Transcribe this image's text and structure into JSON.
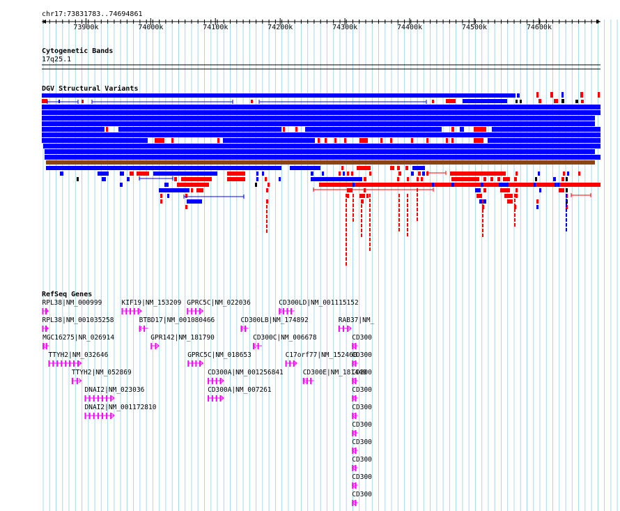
{
  "region": "chr17:73831783..74694861",
  "ruler": {
    "start": 73831783,
    "end": 74694861,
    "ticks": [
      "73900k",
      "74000k",
      "74100k",
      "74200k",
      "74300k",
      "74400k",
      "74500k",
      "74600k"
    ]
  },
  "tracks": {
    "cytoband": {
      "title": "Cytogenetic Bands",
      "band": "17q25.1"
    },
    "dgv": {
      "title": "DGV Structural Variants"
    },
    "refseq": {
      "title": "RefSeq Genes"
    }
  },
  "colors": {
    "grid": "#a8d8e8",
    "gain": "#0000ff",
    "loss": "#ff0000",
    "inversion": "#000000",
    "complex": "#8b4513",
    "gene": "#ff00ff"
  },
  "genes": [
    {
      "label": "RPL38|NM_000999",
      "strand": "+",
      "start": 73832300,
      "end": 73842000,
      "row": 0
    },
    {
      "label": "RPL38|NM_001035258",
      "strand": "+",
      "start": 73832300,
      "end": 73842000,
      "row": 1
    },
    {
      "label": "MGC16275|NR_026914",
      "strand": "-",
      "start": 73833000,
      "end": 73843000,
      "row": 2
    },
    {
      "label": "TTYH2|NM_032646",
      "strand": "+",
      "start": 73842000,
      "end": 73893000,
      "row": 3
    },
    {
      "label": "TTYH2|NM_052869",
      "strand": "+",
      "start": 73878000,
      "end": 73893000,
      "row": 4
    },
    {
      "label": "DNAI2|NM_023036",
      "strand": "+",
      "start": 73898000,
      "end": 73944000,
      "row": 5
    },
    {
      "label": "DNAI2|NM_001172810",
      "strand": "+",
      "start": 73898000,
      "end": 73944000,
      "row": 6
    },
    {
      "label": "KIF19|NM_153209",
      "strand": "+",
      "start": 73955000,
      "end": 73986000,
      "row": 0
    },
    {
      "label": "BTBD17|NM_001080466",
      "strand": "-",
      "start": 73982000,
      "end": 73996000,
      "row": 1
    },
    {
      "label": "GPR142|NM_181790",
      "strand": "+",
      "start": 74000000,
      "end": 74013000,
      "row": 2
    },
    {
      "label": "GPRC5C|NM_022036",
      "strand": "+",
      "start": 74056000,
      "end": 74081000,
      "row": 0
    },
    {
      "label": "GPRC5C|NM_018653",
      "strand": "+",
      "start": 74057000,
      "end": 74081000,
      "row": 3
    },
    {
      "label": "CD300A|NM_001256841",
      "strand": "+",
      "start": 74088000,
      "end": 74113000,
      "row": 4
    },
    {
      "label": "CD300A|NM_007261",
      "strand": "+",
      "start": 74088000,
      "end": 74113000,
      "row": 5
    },
    {
      "label": "CD300LB|NM_174892",
      "strand": "-",
      "start": 74139000,
      "end": 74151000,
      "row": 1
    },
    {
      "label": "CD300C|NM_006678",
      "strand": "-",
      "start": 74158000,
      "end": 74172000,
      "row": 2
    },
    {
      "label": "CD300LD|NM_001115152",
      "strand": "-",
      "start": 74198000,
      "end": 74222000,
      "row": 0
    },
    {
      "label": "C17orf77|NM_152460",
      "strand": "+",
      "start": 74208000,
      "end": 74226000,
      "row": 3
    },
    {
      "label": "CD300E|NM_181449",
      "strand": "-",
      "start": 74235000,
      "end": 74252000,
      "row": 4
    },
    {
      "label": "RAB37|NM_",
      "strand": "+",
      "start": 74290000,
      "end": 74310000,
      "row": 1
    },
    {
      "label": "CD300",
      "strand": "-",
      "start": 74311000,
      "end": 74320000,
      "row": 2
    },
    {
      "label": "CD300",
      "strand": "-",
      "start": 74311000,
      "end": 74320000,
      "row": 3
    },
    {
      "label": "CD300",
      "strand": "-",
      "start": 74311000,
      "end": 74320000,
      "row": 4
    },
    {
      "label": "CD300",
      "strand": "-",
      "start": 74311000,
      "end": 74320000,
      "row": 5
    },
    {
      "label": "CD300",
      "strand": "-",
      "start": 74311000,
      "end": 74320000,
      "row": 6
    },
    {
      "label": "CD300",
      "strand": "-",
      "start": 74311000,
      "end": 74320000,
      "row": 7
    },
    {
      "label": "CD300",
      "strand": "-",
      "start": 74311000,
      "end": 74320000,
      "row": 8
    },
    {
      "label": "CD300",
      "strand": "-",
      "start": 74311000,
      "end": 74320000,
      "row": 9
    },
    {
      "label": "CD300",
      "strand": "-",
      "start": 74311000,
      "end": 74320000,
      "row": 10
    },
    {
      "label": "CD300",
      "strand": "-",
      "start": 74311000,
      "end": 74320000,
      "row": 11
    }
  ]
}
